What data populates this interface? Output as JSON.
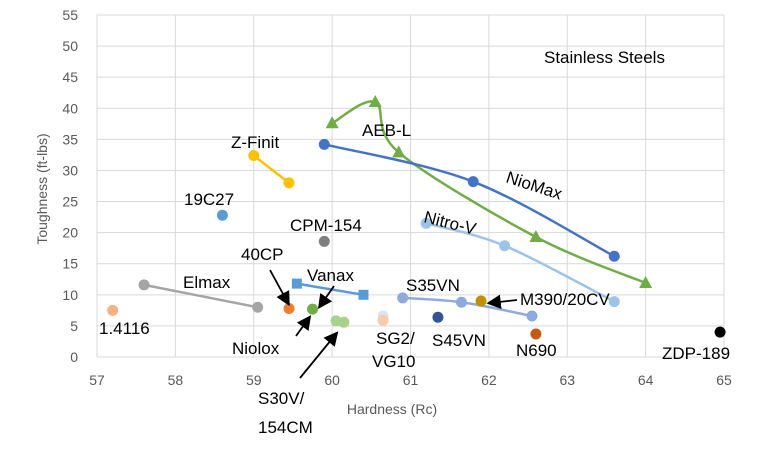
{
  "chart_data": {
    "type": "scatter",
    "title": "Stainless Steels",
    "xlabel": "Hardness (Rc)",
    "ylabel": "Toughness (ft-lbs)",
    "xlim": [
      57,
      65
    ],
    "ylim": [
      0,
      55
    ],
    "x_ticks": [
      "57",
      "58",
      "59",
      "60",
      "61",
      "62",
      "63",
      "64",
      "65"
    ],
    "y_ticks": [
      "0",
      "5",
      "10",
      "15",
      "20",
      "25",
      "30",
      "35",
      "40",
      "45",
      "50",
      "55"
    ],
    "grid": "vertical and horizontal",
    "legend": "none (direct labels)",
    "series": [
      {
        "name": "1.4116",
        "color": "#f4b183",
        "marker": "circle",
        "points": [
          [
            57.2,
            7.5
          ]
        ]
      },
      {
        "name": "Elmax",
        "color": "#a5a5a5",
        "marker": "circle",
        "points": [
          [
            57.6,
            11.6
          ],
          [
            59.05,
            8.0
          ]
        ]
      },
      {
        "name": "19C27",
        "color": "#5b9bd5",
        "marker": "circle",
        "points": [
          [
            58.6,
            22.8
          ]
        ]
      },
      {
        "name": "Z-Finit",
        "color": "#ffc000",
        "marker": "circle",
        "points": [
          [
            59.0,
            32.4
          ],
          [
            59.45,
            28.0
          ]
        ]
      },
      {
        "name": "40CP",
        "color": "#ed7d31",
        "marker": "circle",
        "points": [
          [
            59.45,
            7.8
          ]
        ]
      },
      {
        "name": "Niolox",
        "color": "#70ad47",
        "marker": "circle",
        "points": [
          [
            59.75,
            7.7
          ]
        ]
      },
      {
        "name": "CPM-154",
        "color": "#7f7f7f",
        "marker": "circle",
        "points": [
          [
            59.9,
            18.6
          ]
        ]
      },
      {
        "name": "Vanax",
        "color": "#5b9bd5",
        "marker": "square",
        "points": [
          [
            59.55,
            11.8
          ],
          [
            60.4,
            10.0
          ]
        ]
      },
      {
        "name": "S30V/ 154CM",
        "color": "#a9d18e",
        "marker": "circle",
        "points": [
          [
            60.05,
            5.8
          ],
          [
            60.15,
            5.6
          ]
        ]
      },
      {
        "name": "AEB-L",
        "color": "#70ad47",
        "marker": "triangle",
        "points": [
          [
            60.0,
            37.6
          ],
          [
            60.55,
            41.0
          ],
          [
            60.85,
            32.9
          ],
          [
            62.6,
            19.3
          ],
          [
            64.0,
            11.9
          ]
        ]
      },
      {
        "name": "NioMax",
        "color": "#4472c4",
        "marker": "circle",
        "points": [
          [
            59.9,
            34.2
          ],
          [
            61.8,
            28.2
          ],
          [
            63.6,
            16.2
          ]
        ]
      },
      {
        "name": "Nitro-V",
        "color": "#9dc3e6",
        "marker": "circle",
        "points": [
          [
            61.2,
            21.5
          ],
          [
            62.2,
            17.9
          ],
          [
            63.6,
            8.9
          ]
        ]
      },
      {
        "name": "SG2/ VG10",
        "color": "#dae3f3",
        "marker": "circle",
        "points": [
          [
            60.65,
            6.6
          ]
        ]
      },
      {
        "name": "SG2/ VG10 (alt)",
        "color": "#f8cbad",
        "marker": "circle",
        "points": [
          [
            60.65,
            5.9
          ]
        ]
      },
      {
        "name": "S35VN",
        "color": "#8faadc",
        "marker": "circle",
        "points": [
          [
            60.9,
            9.5
          ],
          [
            61.65,
            8.8
          ],
          [
            62.55,
            6.6
          ]
        ]
      },
      {
        "name": "S45VN",
        "color": "#2f5597",
        "marker": "circle",
        "points": [
          [
            61.35,
            6.4
          ]
        ]
      },
      {
        "name": "M390/20CV",
        "color": "#bf9000",
        "marker": "circle",
        "points": [
          [
            61.9,
            9.0
          ]
        ]
      },
      {
        "name": "N690",
        "color": "#c55a11",
        "marker": "circle",
        "points": [
          [
            62.6,
            3.7
          ]
        ]
      },
      {
        "name": "ZDP-189",
        "color": "#000000",
        "marker": "circle",
        "points": [
          [
            64.95,
            4.0
          ]
        ]
      }
    ],
    "labels": {
      "title": "Stainless Steels",
      "l_14116": "1.4116",
      "l_elmax": "Elmax",
      "l_19c27": "19C27",
      "l_zfinit": "Z-Finit",
      "l_40cp": "40CP",
      "l_niolox": "Niolox",
      "l_cpm154": "CPM-154",
      "l_vanax": "Vanax",
      "l_s30v_1": "S30V/",
      "l_s30v_2": "154CM",
      "l_aebl": "AEB-L",
      "l_niomax": "NioMax",
      "l_nitrov": "Nitro-V",
      "l_sg2_1": "SG2/",
      "l_sg2_2": "VG10",
      "l_s35vn": "S35VN",
      "l_s45vn": "S45VN",
      "l_m390": "M390/20CV",
      "l_n690": "N690",
      "l_zdp": "ZDP-189"
    }
  }
}
